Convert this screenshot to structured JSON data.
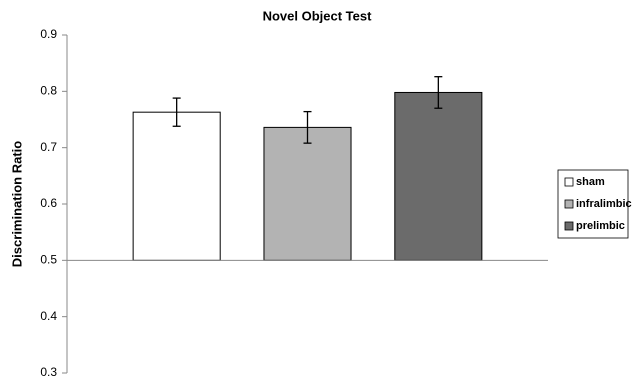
{
  "chart_data": {
    "type": "bar",
    "title": "Novel Object Test",
    "ylabel": "Discrimination Ratio",
    "categories": [
      null
    ],
    "series": [
      {
        "name": "sham",
        "color": "#ffffff",
        "values": [
          0.763
        ],
        "errors": [
          0.025
        ]
      },
      {
        "name": "infralimbic",
        "color": "#b3b3b3",
        "values": [
          0.736
        ],
        "errors": [
          0.028
        ]
      },
      {
        "name": "prelimbic",
        "color": "#6b6b6b",
        "values": [
          0.798
        ],
        "errors": [
          0.028
        ]
      }
    ],
    "baseline": 0.5,
    "ylim": [
      0.3,
      0.9
    ],
    "yticks": [
      0.3,
      0.4,
      0.5,
      0.6,
      0.7,
      0.8,
      0.9
    ],
    "grid": false,
    "legend": "right"
  }
}
